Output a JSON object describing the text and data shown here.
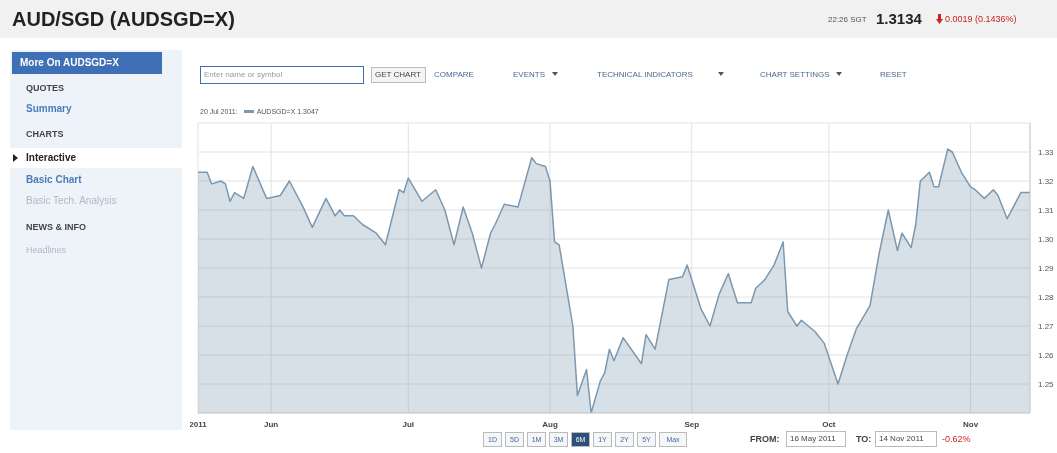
{
  "chart_data": {
    "type": "area",
    "title": "AUD/SGD (AUDSGD=X)",
    "x": [
      "2011-05-16",
      "2011-05-18",
      "2011-05-19",
      "2011-05-21",
      "2011-05-22",
      "2011-05-23",
      "2011-05-24",
      "2011-05-26",
      "2011-05-28",
      "2011-05-31",
      "2011-06-03",
      "2011-06-05",
      "2011-06-08",
      "2011-06-10",
      "2011-06-13",
      "2011-06-15",
      "2011-06-16",
      "2011-06-17",
      "2011-06-19",
      "2011-06-21",
      "2011-06-24",
      "2011-06-26",
      "2011-06-29",
      "2011-06-30",
      "2011-07-01",
      "2011-07-04",
      "2011-07-07",
      "2011-07-09",
      "2011-07-11",
      "2011-07-13",
      "2011-07-15",
      "2011-07-17",
      "2011-07-19",
      "2011-07-20",
      "2011-07-22",
      "2011-07-25",
      "2011-07-28",
      "2011-07-29",
      "2011-07-31",
      "2011-08-01",
      "2011-08-02",
      "2011-08-03",
      "2011-08-06",
      "2011-08-07",
      "2011-08-09",
      "2011-08-10",
      "2011-08-12",
      "2011-08-13",
      "2011-08-14",
      "2011-08-15",
      "2011-08-17",
      "2011-08-21",
      "2011-08-22",
      "2011-08-24",
      "2011-08-27",
      "2011-08-30",
      "2011-08-31",
      "2011-09-03",
      "2011-09-05",
      "2011-09-07",
      "2011-09-09",
      "2011-09-11",
      "2011-09-14",
      "2011-09-15",
      "2011-09-17",
      "2011-09-19",
      "2011-09-21",
      "2011-09-22",
      "2011-09-24",
      "2011-09-25",
      "2011-09-28",
      "2011-09-30",
      "2011-10-03",
      "2011-10-05",
      "2011-10-07",
      "2011-10-10",
      "2011-10-12",
      "2011-10-14",
      "2011-10-16",
      "2011-10-17",
      "2011-10-19",
      "2011-10-20",
      "2011-10-21",
      "2011-10-23",
      "2011-10-24",
      "2011-10-25",
      "2011-10-27",
      "2011-10-28",
      "2011-10-30",
      "2011-11-01",
      "2011-11-02",
      "2011-11-04",
      "2011-11-06",
      "2011-11-07",
      "2011-11-09",
      "2011-11-12",
      "2011-11-14"
    ],
    "series": [
      {
        "name": "AUDSGD=X 1.3047",
        "color": "#7b98b0",
        "values": [
          1.323,
          1.323,
          1.319,
          1.32,
          1.319,
          1.313,
          1.316,
          1.314,
          1.325,
          1.314,
          1.315,
          1.32,
          1.311,
          1.304,
          1.314,
          1.308,
          1.31,
          1.308,
          1.308,
          1.305,
          1.302,
          1.298,
          1.317,
          1.316,
          1.321,
          1.313,
          1.317,
          1.31,
          1.298,
          1.311,
          1.302,
          1.29,
          1.302,
          1.305,
          1.312,
          1.311,
          1.328,
          1.326,
          1.325,
          1.32,
          1.299,
          1.298,
          1.27,
          1.246,
          1.255,
          1.24,
          1.251,
          1.254,
          1.262,
          1.258,
          1.266,
          1.257,
          1.267,
          1.262,
          1.286,
          1.287,
          1.291,
          1.276,
          1.27,
          1.281,
          1.288,
          1.278,
          1.278,
          1.283,
          1.286,
          1.291,
          1.299,
          1.275,
          1.27,
          1.272,
          1.268,
          1.264,
          1.25,
          1.26,
          1.269,
          1.277,
          1.295,
          1.31,
          1.296,
          1.302,
          1.297,
          1.305,
          1.32,
          1.323,
          1.318,
          1.318,
          1.331,
          1.33,
          1.323,
          1.318,
          1.317,
          1.314,
          1.317,
          1.315,
          1.307,
          1.316,
          1.316
        ]
      }
    ],
    "xlim": [
      "2011-05-16",
      "2011-11-14"
    ],
    "xticks": [
      {
        "value": "2011-05-16",
        "label": "2011"
      },
      {
        "value": "2011-06-01",
        "label": "Jun"
      },
      {
        "value": "2011-07-01",
        "label": "Jul"
      },
      {
        "value": "2011-08-01",
        "label": "Aug"
      },
      {
        "value": "2011-09-01",
        "label": "Sep"
      },
      {
        "value": "2011-10-01",
        "label": "Oct"
      },
      {
        "value": "2011-11-01",
        "label": "Nov"
      }
    ],
    "ylim": [
      1.24,
      1.34
    ],
    "yticks": [
      1.25,
      1.26,
      1.27,
      1.28,
      1.29,
      {
        "value": 1.3,
        "label": "1.30"
      },
      1.31,
      1.32,
      1.33
    ],
    "grid": true,
    "legend": "top left",
    "marker": "none",
    "line_style": "solid",
    "annotations": [
      "22:26 SGT",
      "1.3134",
      "0.0019 (0.1436%)",
      "More On AUDSGD=X",
      "QUOTES",
      "Summary",
      "CHARTS",
      "Interactive",
      "Basic Chart",
      "Basic Tech. Analysis",
      "NEWS & INFO",
      "Headlines",
      "Enter name or symbol",
      "GET CHART",
      "COMPARE",
      "EVENTS",
      "TECHNICAL INDICATORS",
      "CHART SETTINGS",
      "RESET",
      "1D",
      "5D",
      "1M",
      "3M",
      "6M",
      "1Y",
      "2Y",
      "5Y",
      "Max",
      "FROM:",
      "16 May 2011",
      "TO:",
      "14 Nov 2011",
      "-0.62%",
      "20 Jul 2011:"
    ]
  }
}
